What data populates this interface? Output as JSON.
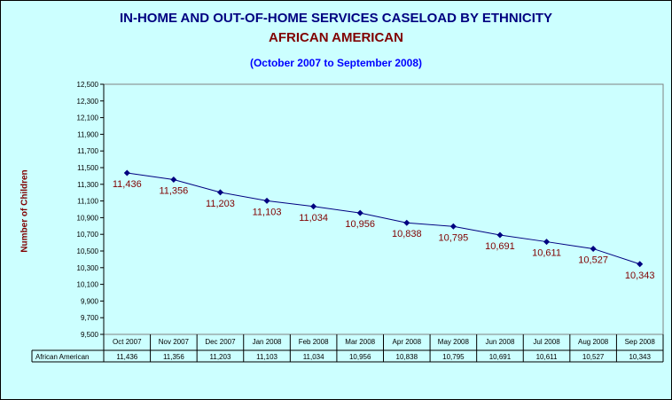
{
  "chart_data": {
    "type": "line",
    "title": "IN-HOME AND OUT-OF-HOME SERVICES CASELOAD BY ETHNICITY",
    "subtitle": "AFRICAN AMERICAN",
    "period": "(October 2007 to September 2008)",
    "ylabel": "Number of Children",
    "ylim": [
      9500,
      12500
    ],
    "ytick_step": 200,
    "ytick_labels": [
      "9,500",
      "9,700",
      "9,900",
      "10,100",
      "10,300",
      "10,500",
      "10,700",
      "10,900",
      "11,100",
      "11,300",
      "11,500",
      "11,700",
      "11,900",
      "12,100",
      "12,300",
      "12,500"
    ],
    "categories": [
      "Oct 2007",
      "Nov 2007",
      "Dec 2007",
      "Jan 2008",
      "Feb 2008",
      "Mar 2008",
      "Apr 2008",
      "May 2008",
      "Jun 2008",
      "Jul 2008",
      "Aug 2008",
      "Sep 2008"
    ],
    "series": [
      {
        "name": "African American",
        "values": [
          11436,
          11356,
          11203,
          11103,
          11034,
          10956,
          10838,
          10795,
          10691,
          10611,
          10527,
          10343
        ],
        "labels": [
          "11,436",
          "11,356",
          "11,203",
          "11,103",
          "11,034",
          "10,956",
          "10,838",
          "10,795",
          "10,691",
          "10,611",
          "10,527",
          "10,343"
        ]
      }
    ],
    "grid": false,
    "legend": "data table",
    "colors": {
      "line": "#000080",
      "marker": "#000080",
      "data_label": "#800000",
      "background": "#ccffff"
    }
  }
}
